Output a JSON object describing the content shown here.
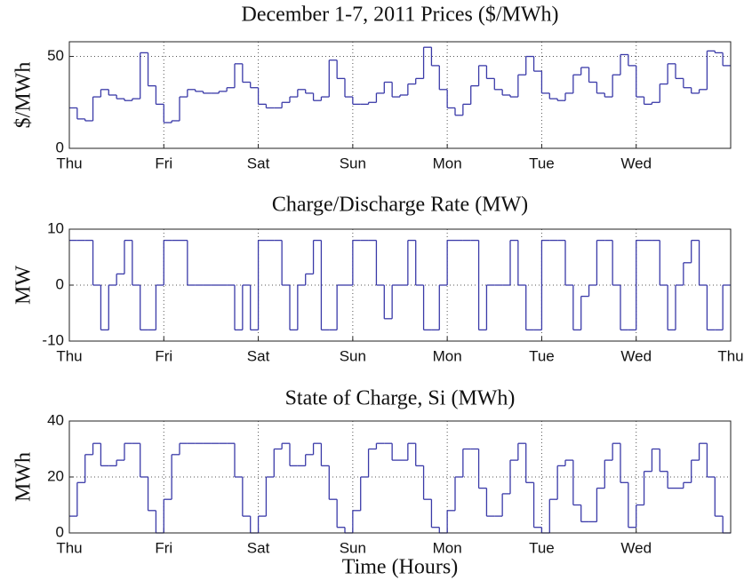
{
  "chart_data": [
    {
      "type": "line",
      "drawstyle": "steps-post",
      "title": "December 1-7, 2011 Prices ($/MWh)",
      "y_label": "$/MWh",
      "color": "#3a3aa8",
      "grid": true,
      "x": [
        0,
        2,
        4,
        6,
        8,
        10,
        12,
        14,
        16,
        18,
        20,
        22,
        24,
        26,
        28,
        30,
        32,
        34,
        36,
        38,
        40,
        42,
        44,
        46,
        48,
        50,
        52,
        54,
        56,
        58,
        60,
        62,
        64,
        66,
        68,
        70,
        72,
        74,
        76,
        78,
        80,
        82,
        84,
        86,
        88,
        90,
        92,
        94,
        96,
        98,
        100,
        102,
        104,
        106,
        108,
        110,
        112,
        114,
        116,
        118,
        120,
        122,
        124,
        126,
        128,
        130,
        132,
        134,
        136,
        138,
        140,
        142,
        144,
        146,
        148,
        150,
        152,
        154,
        156,
        158,
        160,
        162,
        164,
        166
      ],
      "values": [
        22,
        16,
        15,
        28,
        32,
        29,
        27,
        26,
        27,
        52,
        34,
        24,
        14,
        15,
        28,
        32,
        31,
        30,
        30,
        31,
        33,
        46,
        36,
        33,
        24,
        22,
        22,
        25,
        28,
        32,
        30,
        26,
        28,
        48,
        38,
        28,
        24,
        24,
        25,
        30,
        36,
        28,
        29,
        35,
        38,
        55,
        45,
        32,
        22,
        18,
        24,
        34,
        45,
        38,
        32,
        29,
        28,
        40,
        50,
        42,
        30,
        27,
        26,
        30,
        40,
        44,
        36,
        30,
        28,
        40,
        51,
        45,
        28,
        24,
        25,
        35,
        46,
        38,
        33,
        30,
        32,
        53,
        52,
        45
      ],
      "xlim": [
        0,
        168
      ],
      "xticks": [
        {
          "value": 0,
          "label": "Thu"
        },
        {
          "value": 24,
          "label": "Fri"
        },
        {
          "value": 48,
          "label": "Sat"
        },
        {
          "value": 72,
          "label": "Sun"
        },
        {
          "value": 96,
          "label": "Mon"
        },
        {
          "value": 120,
          "label": "Tue"
        },
        {
          "value": 144,
          "label": "Wed"
        }
      ],
      "ylim": [
        0,
        58
      ],
      "yticks": [
        0,
        50
      ]
    },
    {
      "type": "line",
      "drawstyle": "steps-post",
      "title": "Charge/Discharge Rate (MW)",
      "y_label": "MW",
      "color": "#3a3aa8",
      "grid": true,
      "x": [
        0,
        2,
        4,
        6,
        8,
        10,
        12,
        14,
        16,
        18,
        20,
        22,
        24,
        26,
        28,
        30,
        32,
        34,
        36,
        38,
        40,
        42,
        44,
        46,
        48,
        50,
        52,
        54,
        56,
        58,
        60,
        62,
        64,
        66,
        68,
        70,
        72,
        74,
        76,
        78,
        80,
        82,
        84,
        86,
        88,
        90,
        92,
        94,
        96,
        98,
        100,
        102,
        104,
        106,
        108,
        110,
        112,
        114,
        116,
        118,
        120,
        122,
        124,
        126,
        128,
        130,
        132,
        134,
        136,
        138,
        140,
        142,
        144,
        146,
        148,
        150,
        152,
        154,
        156,
        158,
        160,
        162,
        164,
        166
      ],
      "values": [
        8,
        8,
        8,
        0,
        -8,
        0,
        2,
        8,
        0,
        -8,
        -8,
        0,
        8,
        8,
        8,
        0,
        0,
        0,
        0,
        0,
        0,
        -8,
        0,
        -8,
        8,
        8,
        8,
        0,
        -8,
        0,
        2,
        8,
        -8,
        -8,
        0,
        0,
        8,
        8,
        8,
        0,
        -6,
        0,
        0,
        8,
        0,
        -8,
        -8,
        0,
        8,
        8,
        8,
        8,
        -8,
        0,
        0,
        0,
        8,
        0,
        -8,
        -8,
        8,
        8,
        8,
        0,
        -8,
        -2,
        0,
        8,
        8,
        0,
        -8,
        -8,
        8,
        8,
        8,
        0,
        -8,
        0,
        4,
        8,
        0,
        -8,
        -8,
        0
      ],
      "xlim": [
        0,
        168
      ],
      "xticks": [
        {
          "value": 0,
          "label": "Thu"
        },
        {
          "value": 24,
          "label": "Fri"
        },
        {
          "value": 48,
          "label": "Sat"
        },
        {
          "value": 72,
          "label": "Sun"
        },
        {
          "value": 96,
          "label": "Mon"
        },
        {
          "value": 120,
          "label": "Tue"
        },
        {
          "value": 144,
          "label": "Wed"
        },
        {
          "value": 168,
          "label": "Thu"
        }
      ],
      "ylim": [
        -10,
        10
      ],
      "yticks": [
        -10,
        0,
        10
      ]
    },
    {
      "type": "line",
      "drawstyle": "steps-post",
      "title": "State of Charge, Si (MWh)",
      "y_label": "MWh",
      "x_label": "Time (Hours)",
      "color": "#3a3aa8",
      "grid": true,
      "x": [
        0,
        2,
        4,
        6,
        8,
        10,
        12,
        14,
        16,
        18,
        20,
        22,
        24,
        26,
        28,
        30,
        32,
        34,
        36,
        38,
        40,
        42,
        44,
        46,
        48,
        50,
        52,
        54,
        56,
        58,
        60,
        62,
        64,
        66,
        68,
        70,
        72,
        74,
        76,
        78,
        80,
        82,
        84,
        86,
        88,
        90,
        92,
        94,
        96,
        98,
        100,
        102,
        104,
        106,
        108,
        110,
        112,
        114,
        116,
        118,
        120,
        122,
        124,
        126,
        128,
        130,
        132,
        134,
        136,
        138,
        140,
        142,
        144,
        146,
        148,
        150,
        152,
        154,
        156,
        158,
        160,
        162,
        164,
        166
      ],
      "values": [
        6,
        18,
        28,
        32,
        24,
        24,
        26,
        32,
        32,
        20,
        8,
        0,
        12,
        28,
        32,
        32,
        32,
        32,
        32,
        32,
        32,
        20,
        6,
        0,
        6,
        20,
        30,
        32,
        24,
        24,
        28,
        32,
        24,
        12,
        2,
        0,
        8,
        20,
        30,
        32,
        32,
        26,
        26,
        32,
        24,
        12,
        2,
        0,
        8,
        20,
        30,
        30,
        16,
        6,
        6,
        14,
        26,
        32,
        18,
        2,
        0,
        12,
        24,
        26,
        10,
        4,
        4,
        16,
        26,
        32,
        18,
        2,
        10,
        22,
        30,
        22,
        16,
        16,
        18,
        26,
        32,
        20,
        6,
        0
      ],
      "xlim": [
        0,
        168
      ],
      "xticks": [
        {
          "value": 0,
          "label": "Thu"
        },
        {
          "value": 24,
          "label": "Fri"
        },
        {
          "value": 48,
          "label": "Sat"
        },
        {
          "value": 72,
          "label": "Sun"
        },
        {
          "value": 96,
          "label": "Mon"
        },
        {
          "value": 120,
          "label": "Tue"
        },
        {
          "value": 144,
          "label": "Wed"
        }
      ],
      "ylim": [
        0,
        40
      ],
      "yticks": [
        0,
        20,
        40
      ]
    }
  ]
}
